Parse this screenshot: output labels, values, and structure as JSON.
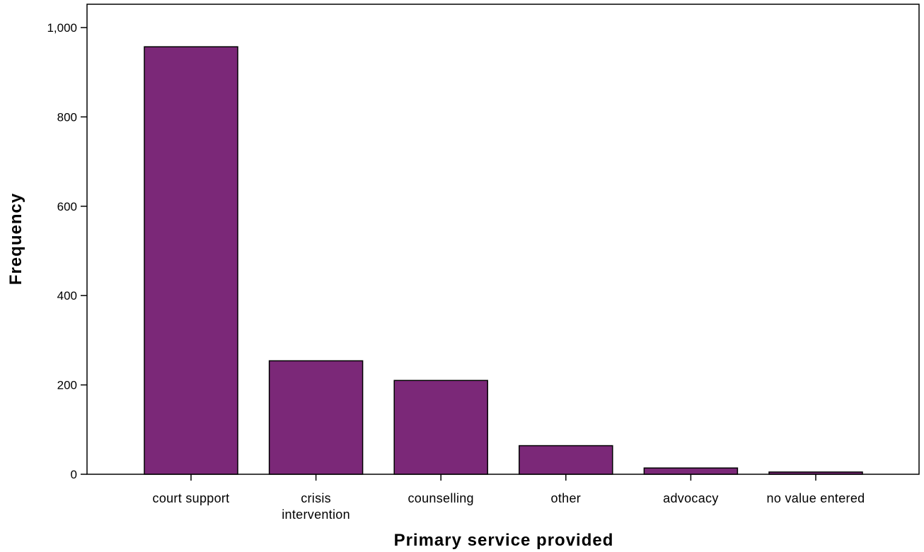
{
  "chart_data": {
    "type": "bar",
    "title": "",
    "xlabel": "Primary service provided",
    "ylabel": "Frequency",
    "categories": [
      [
        "court support"
      ],
      [
        "crisis",
        "intervention"
      ],
      [
        "counselling"
      ],
      [
        "other"
      ],
      [
        "advocacy"
      ],
      [
        "no value entered"
      ]
    ],
    "values": [
      957,
      254,
      210,
      64,
      14,
      5
    ],
    "ylim": [
      0,
      1000
    ],
    "yticks": [
      0,
      200,
      400,
      600,
      800,
      1000
    ],
    "ytick_labels": [
      "0",
      "200",
      "400",
      "600",
      "800",
      "1,000"
    ],
    "bar_color": "#7b2878",
    "grid": false,
    "legend": "none"
  }
}
